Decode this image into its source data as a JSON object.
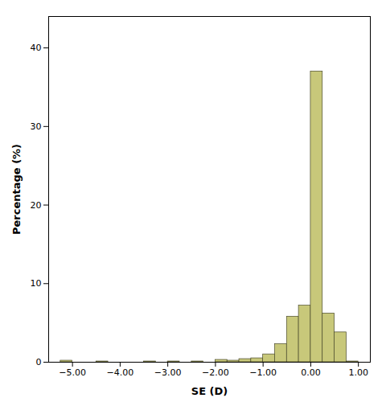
{
  "chart_data": {
    "type": "histogram",
    "xlabel": "SE (D)",
    "ylabel": "Percentage (%)",
    "bins": [
      -5.25,
      -5.0,
      -4.75,
      -4.5,
      -4.25,
      -4.0,
      -3.75,
      -3.5,
      -3.25,
      -3.0,
      -2.75,
      -2.5,
      -2.25,
      -2.0,
      -1.75,
      -1.5,
      -1.25,
      -1.0,
      -0.75,
      -0.5,
      -0.25,
      0.0,
      0.25,
      0.5,
      0.75,
      1.0
    ],
    "values": [
      0.2,
      0.0,
      0.0,
      0.1,
      0.0,
      0.0,
      0.0,
      0.1,
      0.0,
      0.1,
      0.0,
      0.1,
      0.0,
      0.3,
      0.2,
      0.4,
      0.5,
      1.0,
      2.3,
      5.8,
      7.2,
      37.0,
      6.2,
      3.8,
      0.1
    ],
    "color": "#c8c87a",
    "xlim": [
      -5.5,
      1.25
    ],
    "ylim": [
      0,
      44
    ],
    "xticks": [
      {
        "value": -5.0,
        "label": "−5.00"
      },
      {
        "value": -4.0,
        "label": "−4.00"
      },
      {
        "value": -3.0,
        "label": "−3.00"
      },
      {
        "value": -2.0,
        "label": "−2.00"
      },
      {
        "value": -1.0,
        "label": "−1.00"
      },
      {
        "value": 0.0,
        "label": "0.00"
      },
      {
        "value": 1.0,
        "label": "1.00"
      }
    ],
    "yticks": [
      0,
      10,
      20,
      30,
      40
    ],
    "grid": false
  }
}
